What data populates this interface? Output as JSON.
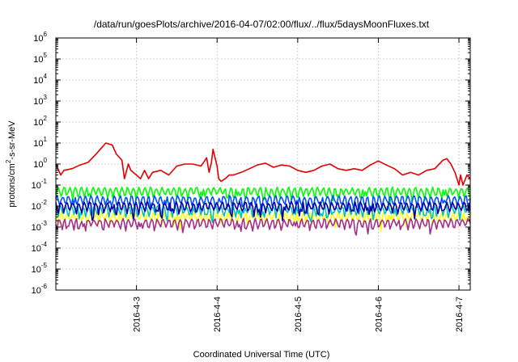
{
  "chart_data": {
    "type": "line",
    "title": "/data/run/goesPlots/archive/2016-04-07/02:00/flux/../flux/5daysMoonFluxes.txt",
    "xlabel": "Coordinated Universal Time (UTC)",
    "ylabel": "protons/cm²-s-sr-MeV",
    "ylabel_parts": {
      "before": "protons/cm",
      "sup": "2",
      "after": "-s-sr-MeV"
    },
    "yscale": "log",
    "ylim_exp": [
      -6,
      6
    ],
    "y_tick_exponents": [
      -6,
      -5,
      -4,
      -3,
      -2,
      -1,
      0,
      1,
      2,
      3,
      4,
      5,
      6
    ],
    "y_tick_base": "10",
    "xlim_days": [
      0,
      5.14
    ],
    "x_ticks": [
      {
        "label": "2016-4-3",
        "day": 1.0
      },
      {
        "label": "2016-4-4",
        "day": 2.0
      },
      {
        "label": "2016-4-5",
        "day": 3.0
      },
      {
        "label": "2016-4-6",
        "day": 4.0
      },
      {
        "label": "2016-4-7",
        "day": 5.0
      }
    ],
    "grid": true,
    "series": [
      {
        "color": "#e00000",
        "day": [
          0.0,
          0.06,
          0.1,
          0.2,
          0.3,
          0.4,
          0.5,
          0.55,
          0.62,
          0.7,
          0.75,
          0.82,
          0.85,
          0.9,
          0.93,
          1.0,
          1.05,
          1.1,
          1.15,
          1.2,
          1.3,
          1.4,
          1.5,
          1.6,
          1.7,
          1.8,
          1.85,
          1.87,
          1.9,
          1.93,
          1.95,
          2.0,
          2.02,
          2.05,
          2.1,
          2.15,
          2.2,
          2.3,
          2.4,
          2.5,
          2.6,
          2.7,
          2.8,
          2.9,
          3.0,
          3.1,
          3.2,
          3.3,
          3.4,
          3.5,
          3.6,
          3.7,
          3.8,
          3.9,
          4.0,
          4.1,
          4.2,
          4.3,
          4.4,
          4.5,
          4.6,
          4.7,
          4.8,
          4.85,
          4.9,
          4.95,
          5.0,
          5.02,
          5.05,
          5.1,
          5.14
        ],
        "value": [
          1.0,
          0.3,
          0.5,
          0.6,
          0.9,
          1.2,
          3.0,
          5.0,
          10.0,
          8.0,
          3.0,
          1.5,
          0.2,
          1.0,
          0.5,
          0.3,
          0.2,
          0.5,
          0.2,
          0.4,
          0.5,
          0.3,
          0.8,
          1.0,
          1.0,
          0.8,
          1.5,
          2.0,
          0.4,
          1.2,
          5.0,
          0.8,
          0.2,
          0.15,
          0.2,
          0.3,
          0.3,
          0.4,
          0.6,
          0.9,
          1.1,
          0.7,
          0.9,
          0.8,
          0.5,
          0.4,
          0.5,
          0.8,
          1.0,
          0.6,
          0.5,
          0.6,
          0.5,
          0.9,
          1.4,
          0.9,
          0.6,
          0.3,
          0.4,
          0.3,
          0.5,
          0.6,
          1.5,
          1.8,
          1.0,
          0.4,
          0.1,
          0.3,
          0.1,
          0.3,
          0.2
        ]
      },
      {
        "color": "#ffff00",
        "level": 0.0032
      },
      {
        "color": "#00c0c0",
        "level": 0.0068
      },
      {
        "color": "#00ff00",
        "level": 0.05
      },
      {
        "color": "#0050ff",
        "level": 0.02
      },
      {
        "color": "#0000a0",
        "level": 0.01
      },
      {
        "color": "#a0308a",
        "level": 0.0016
      }
    ]
  }
}
